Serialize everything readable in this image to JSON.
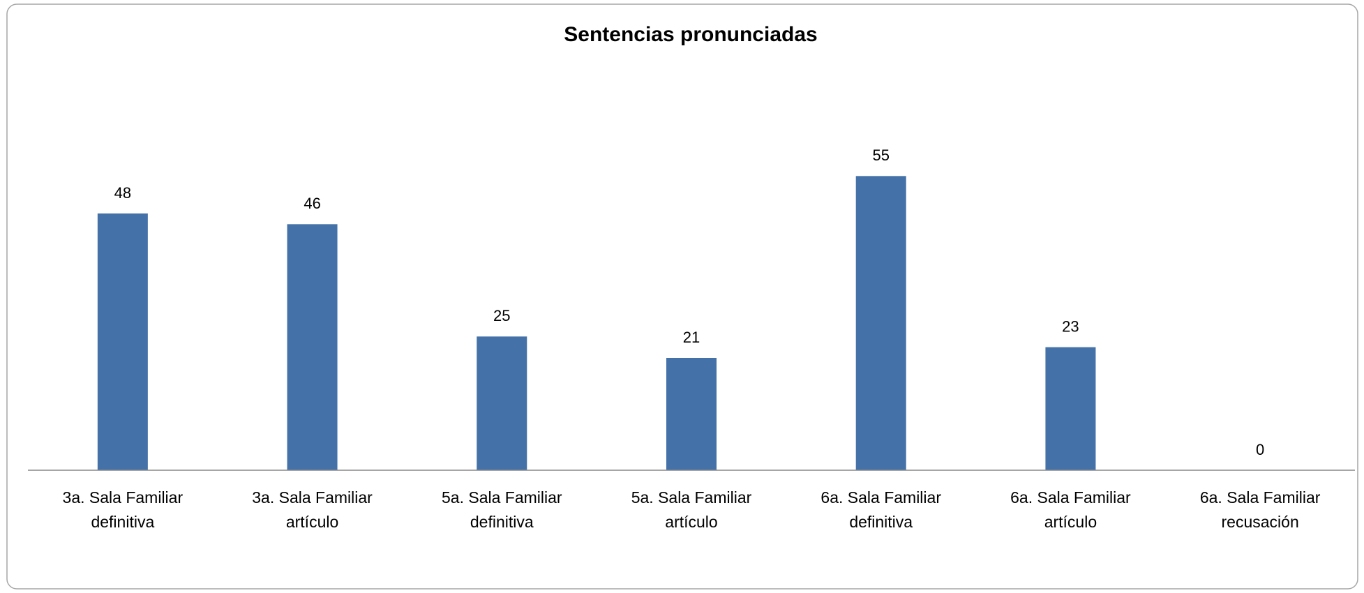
{
  "chart_data": {
    "type": "bar",
    "title": "Sentencias pronunciadas",
    "categories": [
      "3a. Sala Familiar definitiva",
      "3a. Sala Familiar artículo",
      "5a. Sala Familiar definitiva",
      "5a. Sala Familiar artículo",
      "6a. Sala Familiar definitiva",
      "6a. Sala Familiar artículo",
      "6a. Sala Familiar recusación"
    ],
    "values": [
      48,
      46,
      25,
      21,
      55,
      23,
      0
    ],
    "color": "#4472a8",
    "ylim": [
      0,
      60
    ],
    "grid": false
  }
}
